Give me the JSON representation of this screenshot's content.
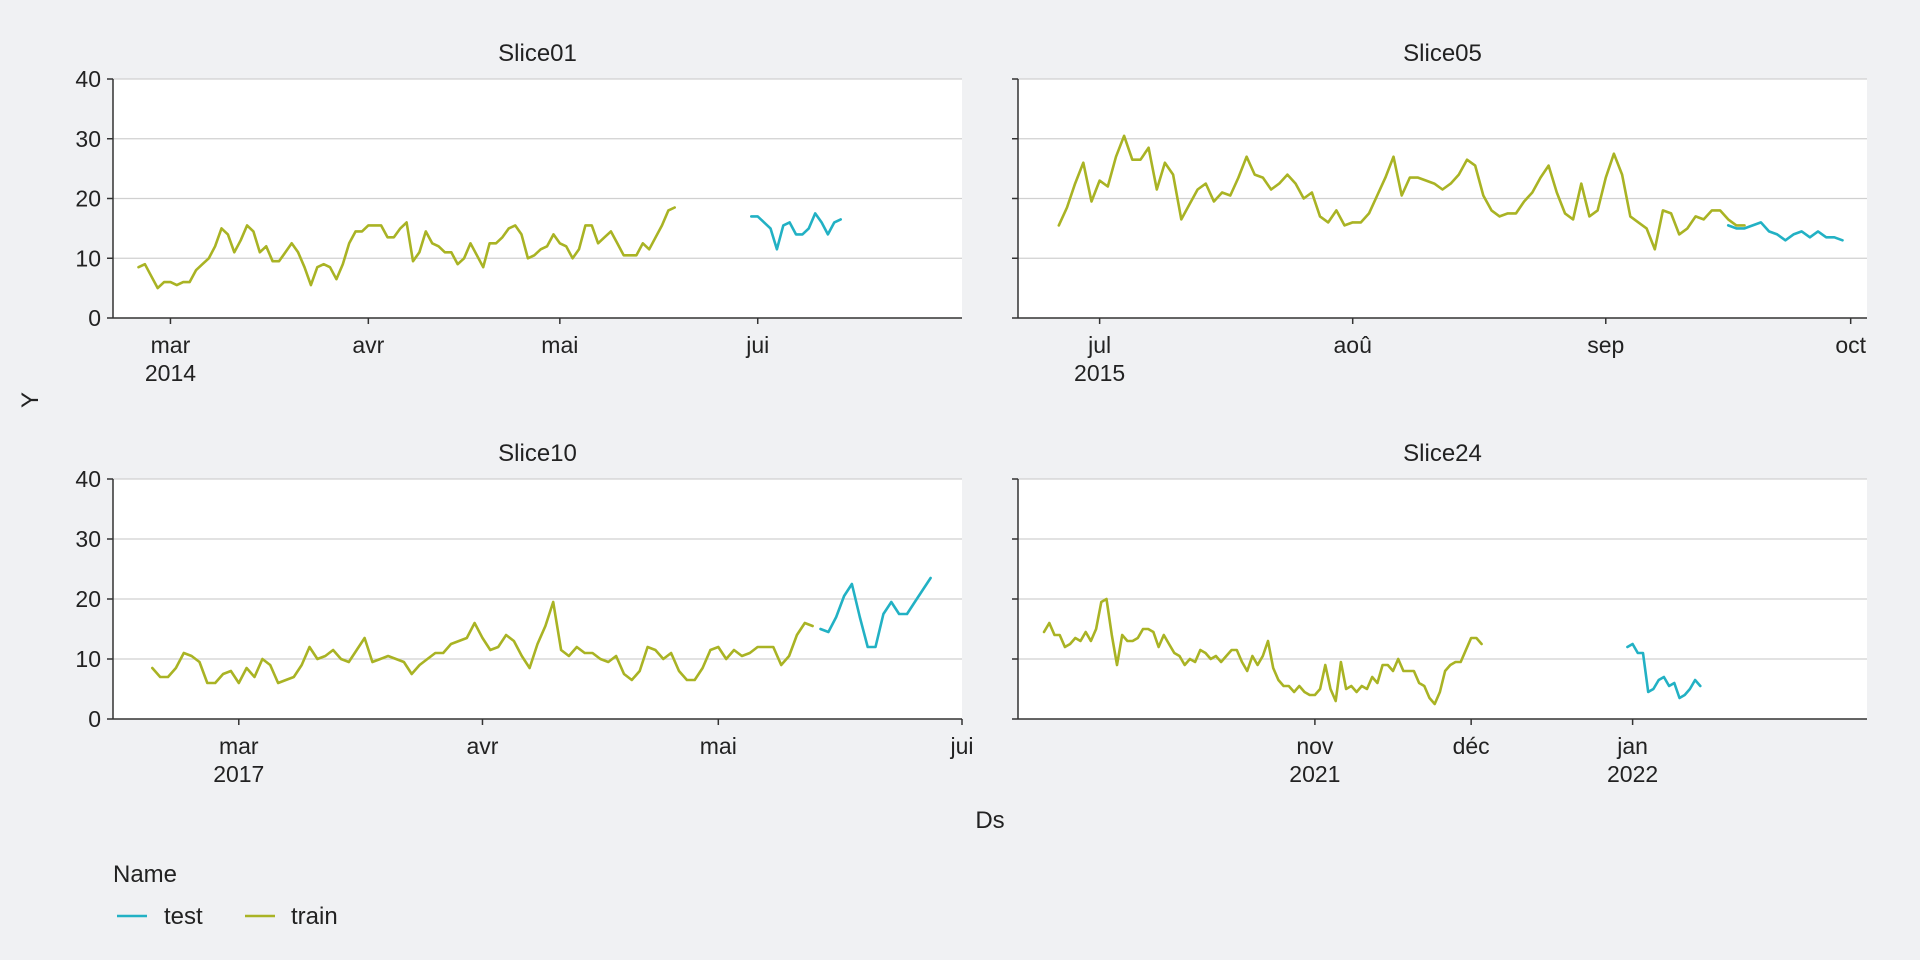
{
  "colors": {
    "test": "#22b1c4",
    "train": "#a9b324"
  },
  "legend": {
    "title": "Name",
    "items": [
      {
        "key": "test",
        "label": "test"
      },
      {
        "key": "train",
        "label": "train"
      }
    ]
  },
  "chart_data": {
    "type": "line",
    "xlabel": "Ds",
    "ylabel": "Y",
    "ylim": [
      0,
      40
    ],
    "yticks": [
      0,
      10,
      20,
      30,
      40
    ],
    "grid": true,
    "legend_placement": "bottom-left",
    "panels": [
      {
        "title": "Slice01",
        "xlim": [
          "2014-02-20",
          "2014-07-03"
        ],
        "xticks": [
          {
            "date": "2014-03-01",
            "label": "mar",
            "year": "2014"
          },
          {
            "date": "2014-04-01",
            "label": "avr",
            "year": ""
          },
          {
            "date": "2014-05-01",
            "label": "mai",
            "year": ""
          },
          {
            "date": "2014-06-01",
            "label": "jui",
            "year": ""
          }
        ],
        "series": [
          {
            "key": "train",
            "start": "2014-02-24",
            "values": [
              8.5,
              9,
              7,
              5,
              6,
              6,
              5.5,
              6,
              6,
              8,
              9,
              10,
              12,
              15,
              14,
              11,
              13,
              15.5,
              14.5,
              11,
              12,
              9.5,
              9.5,
              11,
              12.5,
              11,
              8.5,
              5.5,
              8.5,
              9,
              8.5,
              6.5,
              9,
              12.5,
              14.5,
              14.5,
              15.5,
              15.5,
              15.5,
              13.5,
              13.5,
              15,
              16,
              9.5,
              11,
              14.5,
              12.5,
              12,
              11,
              11,
              9,
              10,
              12.5,
              10.5,
              8.5,
              12.5,
              12.5,
              13.5,
              15,
              15.5,
              14,
              10,
              10.5,
              11.5,
              12,
              14,
              12.5,
              12,
              10,
              11.5,
              15.5,
              15.5,
              12.5,
              13.5,
              14.5,
              12.5,
              10.5,
              10.5,
              10.5,
              12.5,
              11.5,
              13.5,
              15.5,
              18,
              18.5
            ]
          },
          {
            "key": "test",
            "start": "2014-05-31",
            "values": [
              17,
              17,
              16,
              15,
              11.5,
              15.5,
              16,
              14,
              14,
              15,
              17.5,
              16,
              14,
              16,
              16.5
            ]
          }
        ]
      },
      {
        "title": "Slice05",
        "xlim": [
          "2015-06-21",
          "2015-10-03"
        ],
        "xticks": [
          {
            "date": "2015-07-01",
            "label": "jul",
            "year": "2015"
          },
          {
            "date": "2015-08-01",
            "label": "aoû",
            "year": ""
          },
          {
            "date": "2015-09-01",
            "label": "sep",
            "year": ""
          },
          {
            "date": "2015-10-01",
            "label": "oct",
            "year": ""
          }
        ],
        "series": [
          {
            "key": "train",
            "start": "2015-06-26",
            "values": [
              15.5,
              18.5,
              22.5,
              26,
              19.5,
              23,
              22,
              27,
              30.5,
              26.5,
              26.5,
              28.5,
              21.5,
              26,
              24,
              16.5,
              19,
              21.5,
              22.5,
              19.5,
              21,
              20.5,
              23.5,
              27,
              24,
              23.5,
              21.5,
              22.5,
              24,
              22.5,
              20,
              21,
              17,
              16,
              18,
              15.5,
              16,
              16,
              17.5,
              20.5,
              23.5,
              27,
              20.5,
              23.5,
              23.5,
              23,
              22.5,
              21.5,
              22.5,
              24,
              26.5,
              25.5,
              20.5,
              18,
              17,
              17.5,
              17.5,
              19.5,
              21,
              23.5,
              25.5,
              21,
              17.5,
              16.5,
              22.5,
              17,
              18,
              23.5,
              27.5,
              24,
              17,
              16,
              15,
              11.5,
              18,
              17.5,
              14,
              15,
              17,
              16.5,
              18,
              18,
              16.5,
              15.5,
              15.5
            ]
          },
          {
            "key": "test",
            "start": "2015-09-16",
            "values": [
              15.5,
              15,
              15,
              15.5,
              16,
              14.5,
              14,
              13,
              14,
              14.5,
              13.5,
              14.5,
              13.5,
              13.5,
              13
            ]
          }
        ]
      },
      {
        "title": "Slice10",
        "xlim": [
          "2017-02-13",
          "2017-06-01"
        ],
        "xticks": [
          {
            "date": "2017-03-01",
            "label": "mar",
            "year": "2017"
          },
          {
            "date": "2017-04-01",
            "label": "avr",
            "year": ""
          },
          {
            "date": "2017-05-01",
            "label": "mai",
            "year": ""
          },
          {
            "date": "2017-06-01",
            "label": "jui",
            "year": ""
          }
        ],
        "series": [
          {
            "key": "train",
            "start": "2017-02-18",
            "values": [
              8.5,
              7,
              7,
              8.5,
              11,
              10.5,
              9.5,
              6,
              6,
              7.5,
              8,
              6,
              8.5,
              7,
              10,
              9,
              6,
              6.5,
              7,
              9,
              12,
              10,
              10.5,
              11.5,
              10,
              9.5,
              11.5,
              13.5,
              9.5,
              10,
              10.5,
              10,
              9.5,
              7.5,
              9,
              10,
              11,
              11,
              12.5,
              13,
              13.5,
              16,
              13.5,
              11.5,
              12,
              14,
              13,
              10.5,
              8.5,
              12.5,
              15.5,
              19.5,
              11.5,
              10.5,
              12,
              11,
              11,
              10,
              9.5,
              10.5,
              7.5,
              6.5,
              8,
              12,
              11.5,
              10,
              11,
              8,
              6.5,
              6.5,
              8.5,
              11.5,
              12,
              10,
              11.5,
              10.5,
              11,
              12,
              12,
              12,
              9,
              10.5,
              14,
              16,
              15.5
            ]
          },
          {
            "key": "test",
            "start": "2017-05-14",
            "values": [
              15,
              14.5,
              17,
              20.5,
              22.5,
              17,
              12,
              12,
              17.5,
              19.5,
              17.5,
              17.5,
              19.5,
              21.5,
              23.5
            ]
          }
        ]
      },
      {
        "title": "Slice24",
        "xlim": [
          "2021-09-05",
          "2022-02-15"
        ],
        "xticks": [
          {
            "date": "2021-11-01",
            "label": "nov",
            "year": "2021"
          },
          {
            "date": "2021-12-01",
            "label": "déc",
            "year": ""
          },
          {
            "date": "2022-01-01",
            "label": "jan",
            "year": "2022"
          }
        ],
        "series": [
          {
            "key": "train",
            "start": "2021-09-10",
            "values": [
              14.5,
              16,
              14,
              14,
              12,
              12.5,
              13.5,
              13,
              14.5,
              13,
              15,
              19.5,
              20,
              14,
              9,
              14,
              13,
              13,
              13.5,
              15,
              15,
              14.5,
              12,
              14,
              12.5,
              11,
              10.5,
              9,
              10,
              9.5,
              11.5,
              11,
              10,
              10.5,
              9.5,
              10.5,
              11.5,
              11.5,
              9.5,
              8,
              10.5,
              9,
              10.5,
              13,
              8.5,
              6.5,
              5.5,
              5.5,
              4.5,
              5.5,
              4.5,
              4,
              4,
              5,
              9,
              5,
              3,
              9.5,
              5,
              5.5,
              4.5,
              5.5,
              5,
              7,
              6,
              9,
              9,
              8,
              10,
              8,
              8,
              8,
              6,
              5.5,
              3.5,
              2.5,
              4.5,
              8,
              9,
              9.5,
              9.5,
              11.5,
              13.5,
              13.5,
              12.5
            ]
          },
          {
            "key": "test",
            "start": "2021-12-31",
            "values": [
              12,
              12.5,
              11,
              11,
              4.5,
              5,
              6.5,
              7,
              5.5,
              6,
              3.5,
              4,
              5,
              6.5,
              5.5
            ]
          }
        ]
      }
    ]
  }
}
